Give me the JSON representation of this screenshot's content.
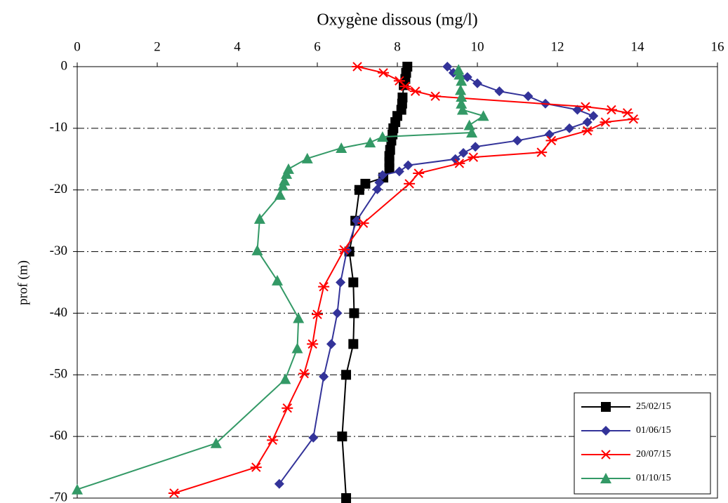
{
  "chart_data": {
    "type": "line",
    "title": "Oxygène dissous (mg/l)",
    "y_label": "prof (m)",
    "xlim": [
      0,
      16
    ],
    "xticks": [
      0,
      2,
      4,
      6,
      8,
      10,
      12,
      14,
      16
    ],
    "ylim": [
      -70,
      0
    ],
    "yticks": [
      0,
      -10,
      -20,
      -30,
      -40,
      -50,
      -60,
      -70
    ],
    "grid": true,
    "legend": "lower right",
    "series": [
      {
        "name": "25/02/15",
        "color": "#000000",
        "marker": "square",
        "x": [
          8.25,
          8.22,
          8.2,
          8.16,
          8.13,
          8.12,
          8.1,
          8.0,
          7.95,
          7.9,
          7.88,
          7.85,
          7.82,
          7.8,
          7.8,
          7.8,
          7.65,
          7.2,
          7.05,
          6.95,
          6.8,
          6.9,
          6.92,
          6.9,
          6.72,
          6.62,
          6.72
        ],
        "y": [
          0,
          -1,
          -2,
          -3,
          -5,
          -6,
          -7,
          -8,
          -9,
          -10,
          -11,
          -12,
          -13.5,
          -14.5,
          -15.5,
          -16.5,
          -18,
          -19,
          -20,
          -25,
          -30,
          -35,
          -40,
          -45,
          -50,
          -60,
          -70
        ]
      },
      {
        "name": "01/06/15",
        "color": "#333399",
        "marker": "diamond",
        "x": [
          9.25,
          9.4,
          9.75,
          10.0,
          10.55,
          11.27,
          11.7,
          12.5,
          12.9,
          12.75,
          12.3,
          11.8,
          11.0,
          9.95,
          9.65,
          9.45,
          8.27,
          8.05,
          7.63,
          7.55,
          7.5,
          6.98,
          6.74,
          6.58,
          6.5,
          6.35,
          6.16,
          5.9,
          5.05
        ],
        "y": [
          0,
          -1,
          -1.7,
          -2.7,
          -4,
          -4.8,
          -6,
          -7,
          -8,
          -9,
          -10,
          -11,
          -12,
          -13,
          -14,
          -15,
          -16,
          -17,
          -17.6,
          -18.8,
          -19.9,
          -25,
          -29.8,
          -35,
          -40,
          -45,
          -50.3,
          -60.2,
          -67.7
        ]
      },
      {
        "name": "20/07/15",
        "color": "#ff0000",
        "marker": "star",
        "x": [
          7.0,
          7.65,
          8.05,
          8.2,
          8.45,
          8.95,
          12.7,
          13.35,
          13.75,
          13.9,
          13.2,
          12.75,
          11.85,
          11.6,
          9.9,
          9.55,
          8.53,
          8.3,
          7.15,
          6.67,
          6.16,
          6.0,
          5.88,
          5.67,
          5.25,
          4.88,
          4.47,
          2.42
        ],
        "y": [
          0,
          -1,
          -2.3,
          -3.2,
          -4,
          -4.8,
          -6.5,
          -7,
          -7.5,
          -8.5,
          -9,
          -10.4,
          -12,
          -13.9,
          -14.7,
          -15.7,
          -17.3,
          -19,
          -25.4,
          -29.7,
          -35.7,
          -40.2,
          -45,
          -49.8,
          -55.4,
          -60.6,
          -65,
          -69.2
        ]
      },
      {
        "name": "01/10/15",
        "color": "#339966",
        "marker": "triangle",
        "x": [
          9.53,
          9.55,
          9.6,
          9.58,
          9.6,
          9.6,
          9.63,
          10.15,
          9.8,
          9.86,
          7.63,
          7.32,
          6.6,
          5.75,
          5.28,
          5.23,
          5.18,
          5.14,
          5.07,
          4.56,
          4.5,
          5.0,
          5.53,
          5.5,
          5.2,
          3.47,
          0
        ],
        "y": [
          -0.5,
          -1.3,
          -2.3,
          -3.8,
          -4.9,
          -6,
          -7,
          -8,
          -9.5,
          -10.7,
          -11.4,
          -12.3,
          -13.2,
          -14.9,
          -16.6,
          -17.4,
          -18.5,
          -19.3,
          -20.8,
          -24.7,
          -29.8,
          -34.7,
          -40.8,
          -45.7,
          -50.7,
          -61.1,
          -68.6
        ]
      }
    ]
  }
}
